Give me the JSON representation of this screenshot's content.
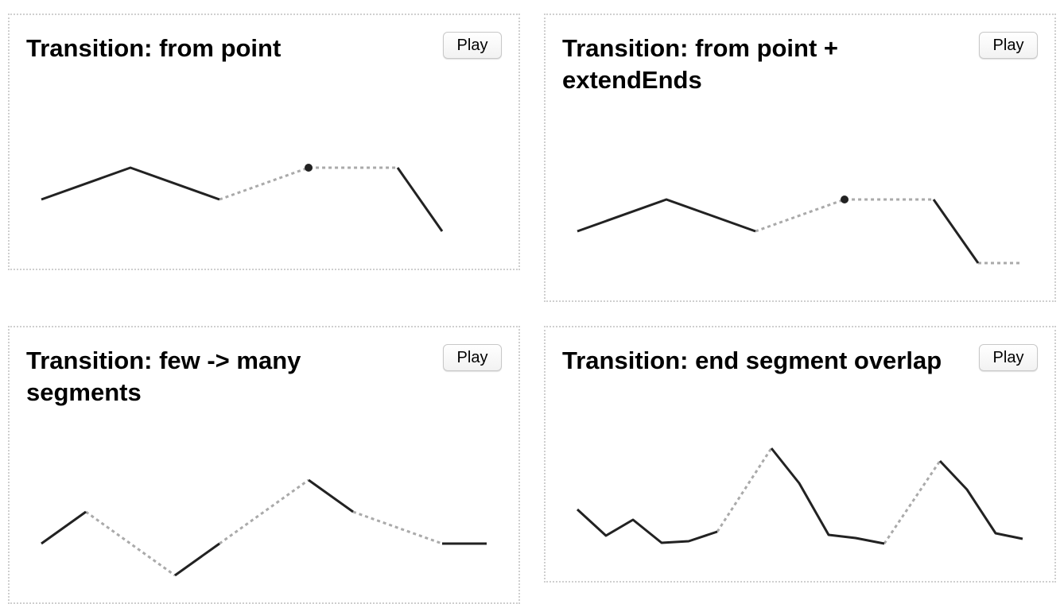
{
  "panels": [
    {
      "title": "Transition: from point",
      "button": "Play",
      "solid": [
        [
          [
            52,
            251
          ],
          [
            164,
            211
          ],
          [
            276,
            251
          ]
        ],
        [
          [
            500,
            211
          ],
          [
            556,
            291
          ]
        ]
      ],
      "dotted": [
        [
          [
            276,
            251
          ],
          [
            388,
            211
          ],
          [
            500,
            211
          ]
        ]
      ],
      "dots": [
        [
          388,
          211
        ]
      ]
    },
    {
      "title": "Transition: from point + extendEnds",
      "button": "Play",
      "solid": [
        [
          [
            726,
            291
          ],
          [
            838,
            251
          ],
          [
            950,
            291
          ]
        ],
        [
          [
            1174,
            251
          ],
          [
            1230,
            331
          ]
        ]
      ],
      "dotted": [
        [
          [
            950,
            291
          ],
          [
            1062,
            251
          ],
          [
            1174,
            251
          ]
        ],
        [
          [
            1230,
            331
          ],
          [
            1286,
            331
          ]
        ]
      ],
      "dots": [
        [
          1062,
          251
        ]
      ]
    },
    {
      "title": "Transition: few -> many segments",
      "button": "Play",
      "solid": [
        [
          [
            52,
            684
          ],
          [
            108,
            644
          ]
        ],
        [
          [
            220,
            724
          ],
          [
            276,
            684
          ]
        ],
        [
          [
            388,
            604
          ],
          [
            444,
            644
          ]
        ],
        [
          [
            556,
            684
          ],
          [
            612,
            684
          ]
        ]
      ],
      "dotted": [
        [
          [
            108,
            644
          ],
          [
            220,
            724
          ]
        ],
        [
          [
            276,
            684
          ],
          [
            388,
            604
          ]
        ],
        [
          [
            444,
            644
          ],
          [
            556,
            684
          ]
        ]
      ],
      "dots": []
    },
    {
      "title": "Transition: end segment overlap",
      "button": "Play",
      "solid": [
        [
          [
            726,
            641
          ],
          [
            762,
            674
          ],
          [
            796,
            654
          ],
          [
            832,
            683
          ],
          [
            866,
            681
          ],
          [
            902,
            669
          ]
        ],
        [
          [
            970,
            564
          ],
          [
            1005,
            608
          ],
          [
            1042,
            673
          ],
          [
            1076,
            677
          ],
          [
            1112,
            684
          ]
        ],
        [
          [
            1182,
            580
          ],
          [
            1216,
            616
          ],
          [
            1252,
            671
          ],
          [
            1286,
            678
          ]
        ]
      ],
      "dotted": [
        [
          [
            902,
            669
          ],
          [
            970,
            564
          ]
        ],
        [
          [
            1112,
            684
          ],
          [
            1182,
            580
          ]
        ]
      ],
      "dots": []
    }
  ]
}
